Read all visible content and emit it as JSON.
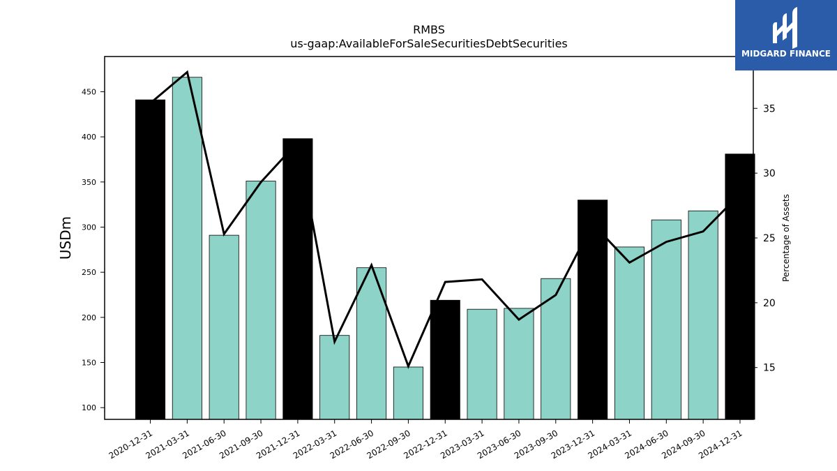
{
  "chart_data": {
    "type": "bar",
    "title": "RMBS",
    "subtitle": "us-gaap:AvailableForSaleSecuritiesDebtSecurities",
    "xlabel": "",
    "ylabel": "USDm",
    "y2label": "Percentage of Assets",
    "categories": [
      "2020-12-31",
      "2021-03-31",
      "2021-06-30",
      "2021-09-30",
      "2021-12-31",
      "2022-03-31",
      "2022-06-30",
      "2022-09-30",
      "2022-12-31",
      "2023-03-31",
      "2023-06-30",
      "2023-09-30",
      "2023-12-31",
      "2024-03-31",
      "2024-06-30",
      "2024-09-30",
      "2024-12-31"
    ],
    "series": [
      {
        "type": "bar",
        "values": [
          441,
          466,
          291,
          351,
          398,
          180,
          255,
          145,
          219,
          209,
          210,
          243,
          330,
          278,
          308,
          318,
          381
        ]
      },
      {
        "type": "line",
        "axis": "right",
        "values": [
          35.4,
          37.8,
          25.3,
          29.3,
          32.4,
          17.0,
          22.9,
          15.1,
          21.6,
          21.8,
          18.7,
          20.6,
          26.1,
          23.1,
          24.7,
          25.5,
          28.4
        ]
      }
    ],
    "bar_colors": {
      "year_end": "#000000",
      "quarter": "#8dd3c7"
    },
    "line_color": "#000000",
    "ylim": [
      87,
      489
    ],
    "y2lim": [
      11.0,
      39.0
    ],
    "yticks": [
      100,
      150,
      200,
      250,
      300,
      350,
      400,
      450
    ],
    "y2ticks": [
      15,
      20,
      25,
      30,
      35
    ],
    "grid": false
  },
  "logo": {
    "text": "MIDGARD FINANCE",
    "background": "#2a5caa"
  }
}
